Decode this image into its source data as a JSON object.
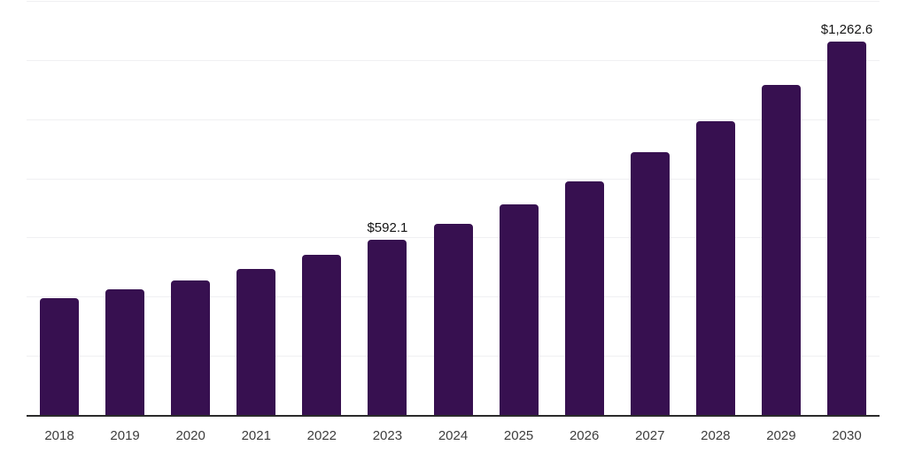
{
  "chart_data": {
    "type": "bar",
    "title": "",
    "categories": [
      "2018",
      "2019",
      "2020",
      "2021",
      "2022",
      "2023",
      "2024",
      "2025",
      "2026",
      "2027",
      "2028",
      "2029",
      "2030"
    ],
    "values": [
      394,
      424,
      456,
      494,
      541,
      592.1,
      646,
      712,
      791,
      889,
      994,
      1117,
      1262.6
    ],
    "data_labels": [
      "",
      "",
      "",
      "",
      "",
      "$592.1",
      "",
      "",
      "",
      "",
      "",
      "",
      "$1,262.6"
    ],
    "xlabel": "",
    "ylabel": "",
    "ylim": [
      0,
      1400
    ],
    "gridline_step": 200,
    "grid": "horizontal-only",
    "y_axis_tick_labels": "none",
    "legend_position": "none"
  },
  "colors": {
    "background": "#ffffff",
    "bar": "#371050",
    "gridline": "#f0f0f2",
    "axis_line": "#2b2b2b",
    "tick_label": "#3d3d3d",
    "data_label": "#141414"
  }
}
